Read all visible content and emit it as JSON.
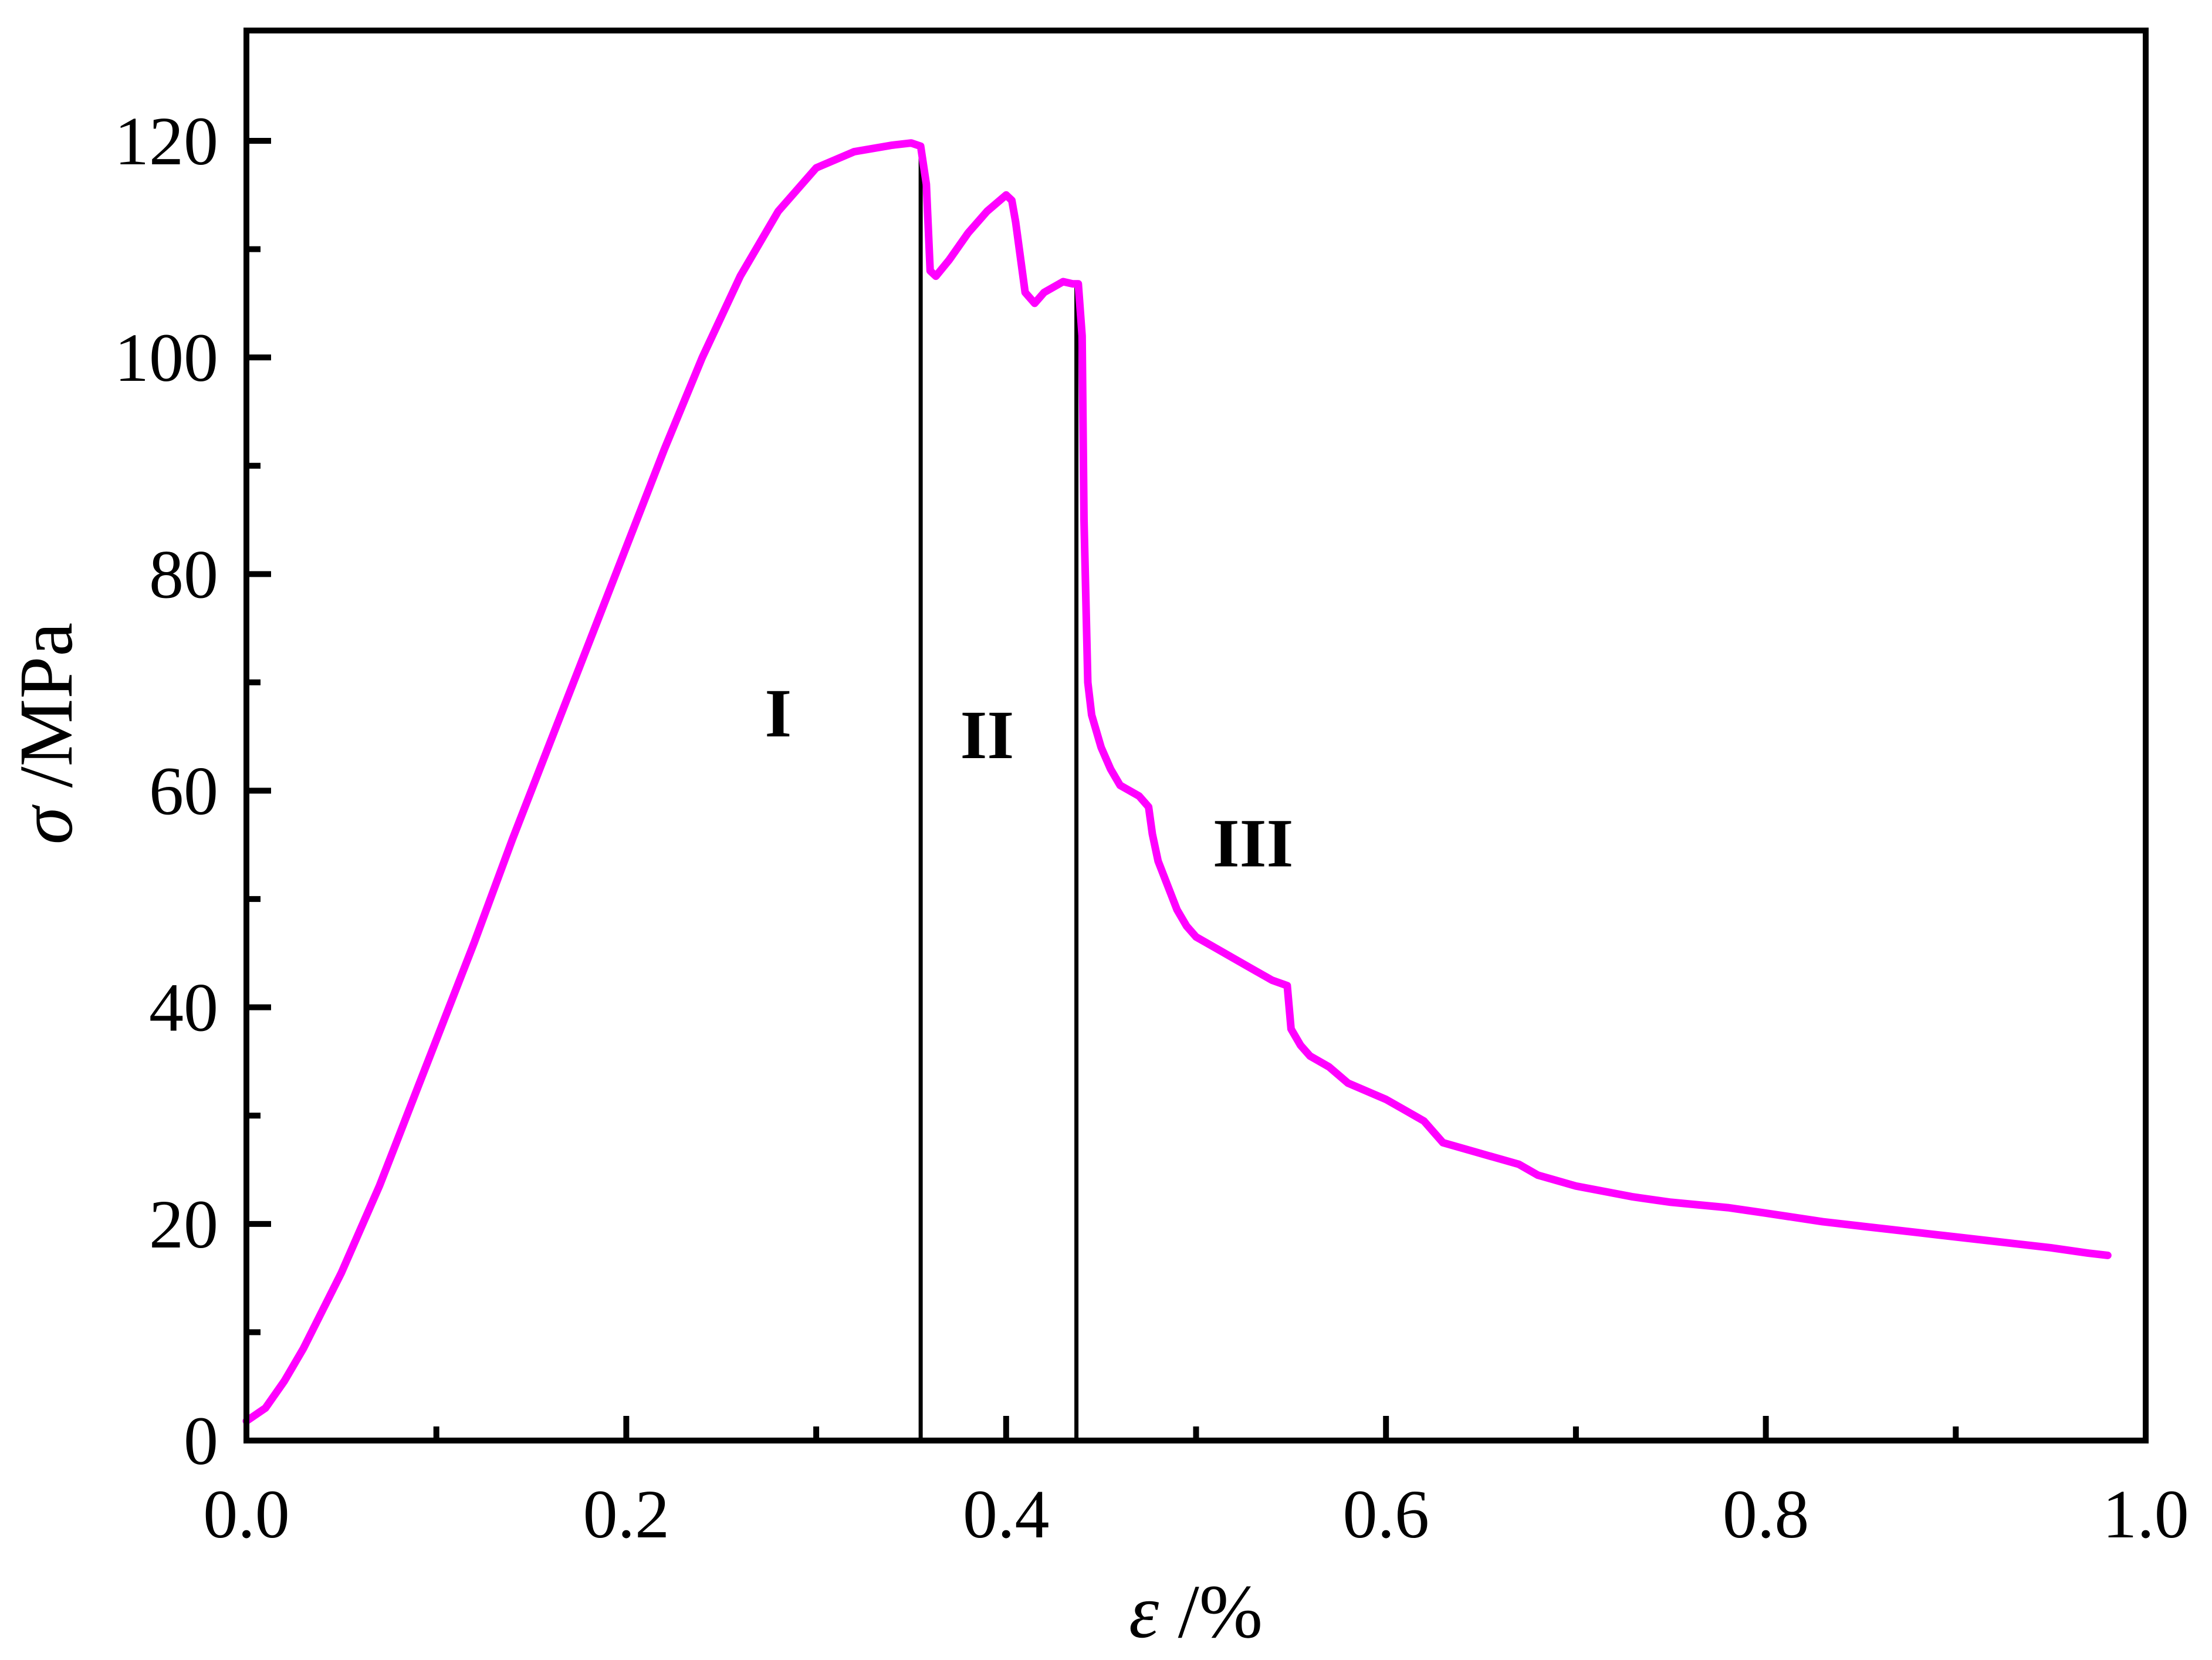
{
  "chart_data": {
    "type": "line",
    "xlabel": {
      "symbol": "ε",
      "unit": " /%"
    },
    "ylabel": {
      "symbol": "σ",
      "unit": " /MPa"
    },
    "xlim": [
      0.0,
      1.0
    ],
    "ylim": [
      0,
      130
    ],
    "x_ticks": [
      "0.0",
      "0.2",
      "0.4",
      "0.6",
      "0.8",
      "1.0"
    ],
    "y_ticks": [
      "0",
      "20",
      "40",
      "60",
      "80",
      "100",
      "120"
    ],
    "grid": false,
    "line_color": "#ff00ff",
    "boundaries": [
      0.355,
      0.437
    ],
    "regions": [
      {
        "label": "I",
        "x": 0.28,
        "y": 65
      },
      {
        "label": "II",
        "x": 0.39,
        "y": 63
      },
      {
        "label": "III",
        "x": 0.53,
        "y": 53
      }
    ],
    "series": [
      {
        "x": [
          0.0,
          0.01,
          0.02,
          0.03,
          0.04,
          0.05,
          0.06,
          0.07,
          0.08,
          0.09,
          0.1,
          0.12,
          0.14,
          0.16,
          0.18,
          0.2,
          0.22,
          0.24,
          0.26,
          0.28,
          0.3,
          0.32,
          0.34,
          0.35,
          0.355,
          0.358,
          0.36,
          0.363,
          0.37,
          0.38,
          0.39,
          0.4,
          0.403,
          0.405,
          0.41,
          0.415,
          0.42,
          0.43,
          0.435,
          0.438,
          0.44,
          0.441,
          0.443,
          0.445,
          0.45,
          0.455,
          0.46,
          0.47,
          0.475,
          0.477,
          0.48,
          0.49,
          0.495,
          0.5,
          0.51,
          0.52,
          0.53,
          0.54,
          0.548,
          0.55,
          0.555,
          0.56,
          0.57,
          0.58,
          0.6,
          0.61,
          0.62,
          0.63,
          0.65,
          0.67,
          0.68,
          0.7,
          0.73,
          0.75,
          0.78,
          0.8,
          0.83,
          0.85,
          0.88,
          0.9,
          0.93,
          0.95,
          0.97,
          0.98
        ],
        "y": [
          1.8,
          3.0,
          5.5,
          8.5,
          12.0,
          15.5,
          19.5,
          23.5,
          28.0,
          32.5,
          37.0,
          46.0,
          55.5,
          64.5,
          73.5,
          82.5,
          91.5,
          100.0,
          107.5,
          113.5,
          117.5,
          119.0,
          119.6,
          119.8,
          119.5,
          116.0,
          108.0,
          107.5,
          109.0,
          111.5,
          113.5,
          115.0,
          114.5,
          112.5,
          106.0,
          105.0,
          106.0,
          107.0,
          106.8,
          106.8,
          102.0,
          85.0,
          70.0,
          67.0,
          64.0,
          62.0,
          60.5,
          59.5,
          58.5,
          56.0,
          53.5,
          49.0,
          47.5,
          46.5,
          45.5,
          44.5,
          43.5,
          42.5,
          42.0,
          38.0,
          36.5,
          35.5,
          34.5,
          33.0,
          31.5,
          30.5,
          29.5,
          27.5,
          26.5,
          25.5,
          24.5,
          23.5,
          22.5,
          22.0,
          21.5,
          21.0,
          20.2,
          19.8,
          19.2,
          18.8,
          18.2,
          17.8,
          17.3,
          17.1
        ]
      }
    ]
  }
}
